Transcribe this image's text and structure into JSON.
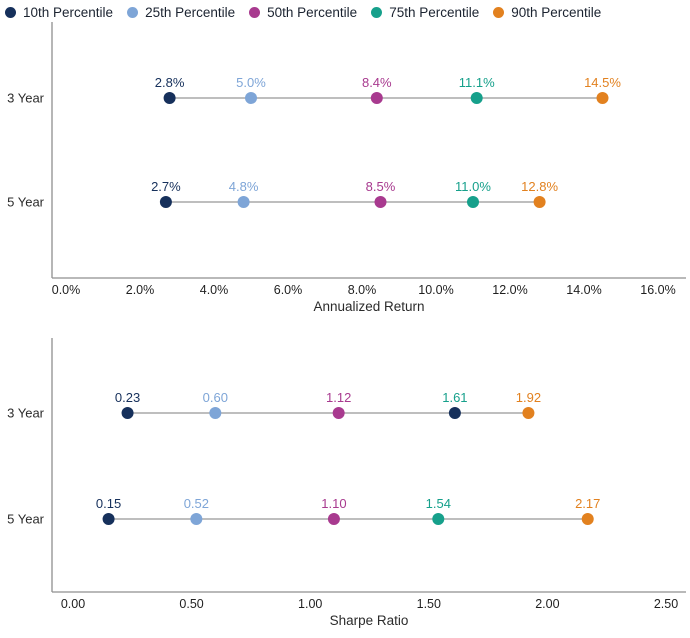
{
  "colors": {
    "p10": "#16305B",
    "p25": "#7EA5D7",
    "p50": "#A83A8F",
    "p75": "#16A08B",
    "p90": "#E2811F",
    "axis_line": "#8F8F8F",
    "connector": "#989898",
    "tick_text": "#1F1F1F",
    "category_text": "#2B2B2B",
    "legend_text": "#1B2330"
  },
  "legend": {
    "position": "top",
    "items": [
      {
        "label": "10th Percentile",
        "color_key": "p10"
      },
      {
        "label": "25th Percentile",
        "color_key": "p25"
      },
      {
        "label": "50th Percentile",
        "color_key": "p50"
      },
      {
        "label": "75th Percentile",
        "color_key": "p75"
      },
      {
        "label": "90th Percentile",
        "color_key": "p90"
      }
    ]
  },
  "chart_data": [
    {
      "type": "scatter",
      "title": "",
      "xlabel": "Annualized Return",
      "ylabel": "",
      "grid": false,
      "categories": [
        "3 Year",
        "5 Year"
      ],
      "xlim": [
        0,
        16
      ],
      "xtick_values": [
        0,
        2,
        4,
        6,
        8,
        10,
        12,
        14,
        16
      ],
      "xtick_labels": [
        "0.0%",
        "2.0%",
        "4.0%",
        "6.0%",
        "8.0%",
        "10.0%",
        "12.0%",
        "14.0%",
        "16.0%"
      ],
      "series": [
        {
          "name": "10th Percentile",
          "color_key": "p10",
          "values": [
            2.8,
            2.7
          ],
          "labels": [
            "2.8%",
            "2.7%"
          ]
        },
        {
          "name": "25th Percentile",
          "color_key": "p25",
          "values": [
            5.0,
            4.8
          ],
          "labels": [
            "5.0%",
            "4.8%"
          ]
        },
        {
          "name": "50th Percentile",
          "color_key": "p50",
          "values": [
            8.4,
            8.5
          ],
          "labels": [
            "8.4%",
            "8.5%"
          ]
        },
        {
          "name": "75th Percentile",
          "color_key": "p75",
          "values": [
            11.1,
            11.0
          ],
          "labels": [
            "11.1%",
            "11.0%"
          ]
        },
        {
          "name": "90th Percentile",
          "color_key": "p90",
          "values": [
            14.5,
            12.8
          ],
          "labels": [
            "14.5%",
            "12.8%"
          ]
        }
      ]
    },
    {
      "type": "scatter",
      "title": "",
      "xlabel": "Sharpe Ratio",
      "ylabel": "",
      "grid": false,
      "categories": [
        "3 Year",
        "5 Year"
      ],
      "xlim": [
        0,
        2.5
      ],
      "xtick_values": [
        0,
        0.5,
        1,
        1.5,
        2,
        2.5
      ],
      "xtick_labels": [
        "0.00",
        "0.50",
        "1.00",
        "1.50",
        "2.00",
        "2.50"
      ],
      "series": [
        {
          "name": "10th Percentile",
          "color_key": "p10",
          "values": [
            0.23,
            0.15
          ],
          "labels": [
            "0.23",
            "0.15"
          ]
        },
        {
          "name": "25th Percentile",
          "color_key": "p25",
          "values": [
            0.6,
            0.52
          ],
          "labels": [
            "0.60",
            "0.52"
          ]
        },
        {
          "name": "50th Percentile",
          "color_key": "p50",
          "values": [
            1.12,
            1.1
          ],
          "labels": [
            "1.12",
            "1.10"
          ]
        },
        {
          "name": "75th Percentile",
          "color_key": "p75",
          "values": [
            1.61,
            1.54
          ],
          "labels": [
            "1.61",
            "1.54"
          ],
          "dot_color_keys": [
            "p10",
            "p75"
          ]
        },
        {
          "name": "90th Percentile",
          "color_key": "p90",
          "values": [
            1.92,
            2.17
          ],
          "labels": [
            "1.92",
            "2.17"
          ]
        }
      ]
    }
  ]
}
